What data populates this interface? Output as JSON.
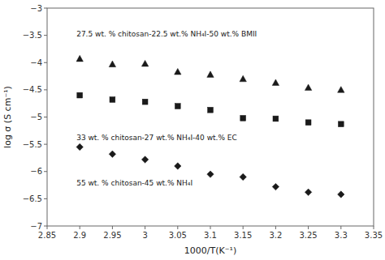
{
  "chart_data": {
    "type": "scatter",
    "xlabel": "1000/T(K⁻¹)",
    "ylabel": "log σ (S cm⁻¹)",
    "xlim": [
      2.85,
      3.35
    ],
    "ylim": [
      -7,
      -3
    ],
    "xticks": [
      2.85,
      2.9,
      2.95,
      3,
      3.05,
      3.1,
      3.15,
      3.2,
      3.25,
      3.3,
      3.35
    ],
    "yticks": [
      {
        "value": -7,
        "label": "−7"
      },
      {
        "value": -6.5,
        "label": "−6.5"
      },
      {
        "value": -6,
        "label": "−6"
      },
      {
        "value": -5.5,
        "label": "−5.5"
      },
      {
        "value": -5,
        "label": "−5"
      },
      {
        "value": -4.5,
        "label": "−4.5"
      },
      {
        "value": -4,
        "label": "−4"
      },
      {
        "value": -3.5,
        "label": "−3.5"
      },
      {
        "value": -3,
        "label": "−3"
      }
    ],
    "grid": false,
    "series": [
      {
        "marker": "triangle",
        "color": "#1a1a1a",
        "x": [
          2.9,
          2.95,
          3.0,
          3.05,
          3.1,
          3.15,
          3.2,
          3.25,
          3.3
        ],
        "values": [
          -3.93,
          -4.03,
          -4.02,
          -4.17,
          -4.22,
          -4.3,
          -4.37,
          -4.46,
          -4.5
        ]
      },
      {
        "marker": "square",
        "color": "#1a1a1a",
        "x": [
          2.9,
          2.95,
          3.0,
          3.05,
          3.1,
          3.15,
          3.2,
          3.25,
          3.3
        ],
        "values": [
          -4.6,
          -4.68,
          -4.72,
          -4.8,
          -4.87,
          -5.02,
          -5.03,
          -5.1,
          -5.13
        ]
      },
      {
        "marker": "diamond",
        "color": "#1a1a1a",
        "x": [
          2.9,
          2.95,
          3.0,
          3.05,
          3.1,
          3.15,
          3.2,
          3.25,
          3.3
        ],
        "values": [
          -5.55,
          -5.68,
          -5.78,
          -5.9,
          -6.05,
          -6.1,
          -6.28,
          -6.38,
          -6.42
        ]
      }
    ],
    "annotations": [
      {
        "text": "27.5 wt. % chitosan-22.5 wt.% NH₄I-50 wt.% BMII",
        "x": 2.895,
        "y": -3.48
      },
      {
        "text": "33 wt. % chitosan-27 wt.% NH₄I-40 wt.% EC",
        "x": 2.895,
        "y": -5.38
      },
      {
        "text": "55 wt. % chitosan-45 wt.% NH₄I",
        "x": 2.895,
        "y": -6.22
      }
    ]
  }
}
